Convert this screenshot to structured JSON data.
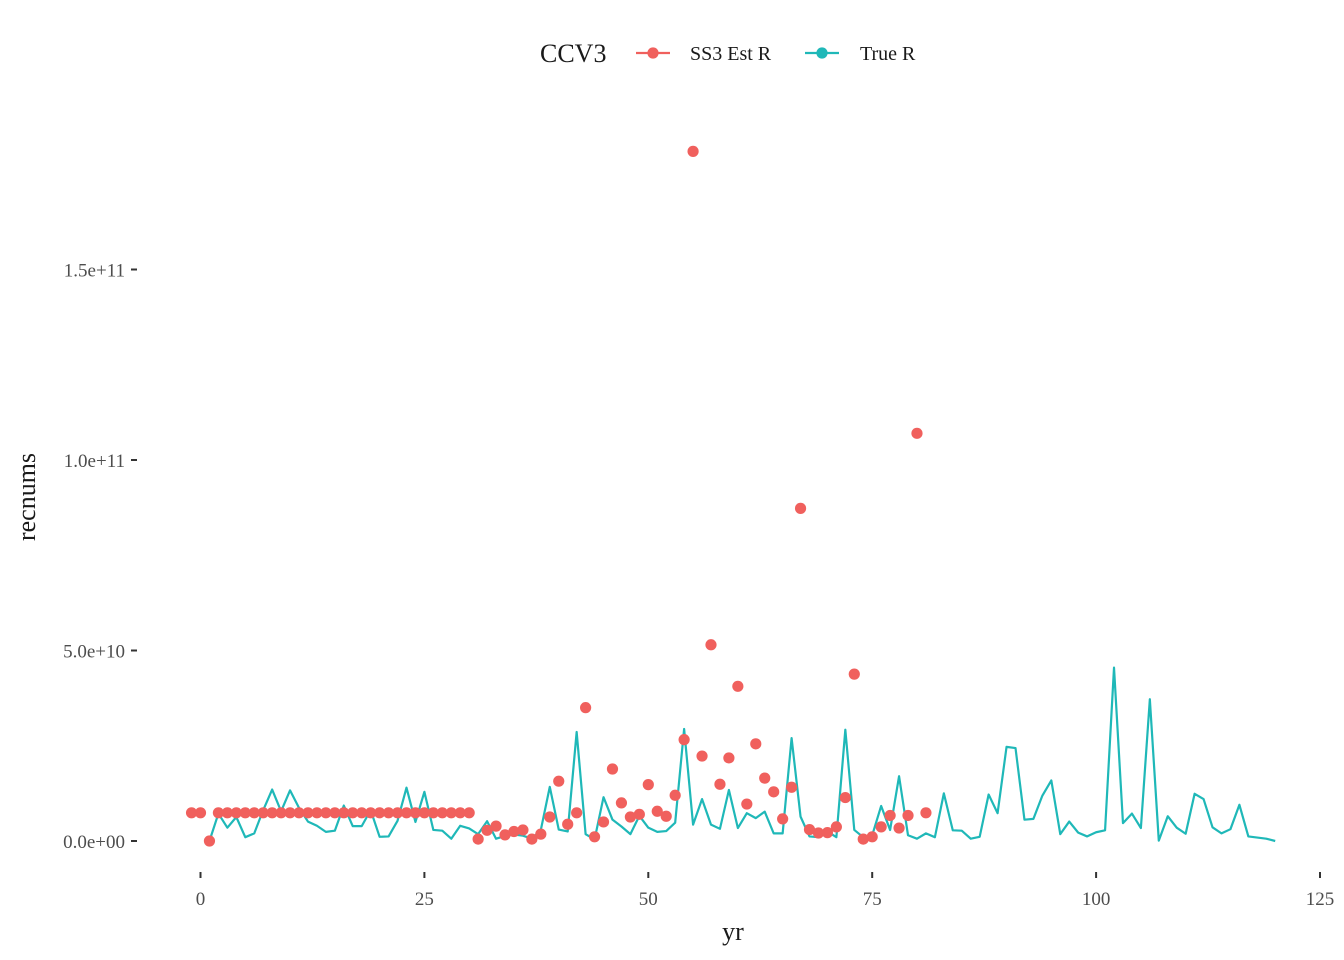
{
  "chart_data": {
    "type": "line",
    "xlabel": "yr",
    "ylabel": "recnums",
    "xlim": [
      -2,
      125
    ],
    "ylim": [
      -7000000000,
      190000000000
    ],
    "xticks": [
      0,
      25,
      50,
      75,
      100,
      125
    ],
    "xtick_labels": [
      "0",
      "25",
      "50",
      "75",
      "100",
      "125"
    ],
    "yticks": [
      0,
      50000000000,
      100000000000,
      150000000000
    ],
    "ytick_labels": [
      "0.0e+00",
      "5.0e+10",
      "1.0e+11",
      "1.5e+11"
    ],
    "grid": false,
    "legend": {
      "title": "CCV3",
      "position": "top",
      "entries": [
        "SS3 Est R",
        "True R"
      ]
    },
    "series": [
      {
        "name": "SS3 Est R",
        "kind": "points",
        "color": "#F0605D",
        "x": [
          -1,
          0,
          1,
          2,
          3,
          4,
          5,
          6,
          7,
          8,
          9,
          10,
          11,
          12,
          13,
          14,
          15,
          16,
          17,
          18,
          19,
          20,
          21,
          22,
          23,
          24,
          25,
          26,
          27,
          28,
          29,
          30,
          31,
          32,
          33,
          34,
          35,
          36,
          37,
          38,
          39,
          40,
          41,
          42,
          43,
          44,
          45,
          46,
          47,
          48,
          49,
          50,
          51,
          52,
          53,
          54,
          55,
          56,
          57,
          58,
          59,
          60,
          61,
          62,
          63,
          64,
          65,
          66,
          67,
          68,
          69,
          70,
          71,
          72,
          73,
          74,
          75,
          76,
          77,
          78,
          79,
          80,
          81
        ],
        "y": [
          7400000000,
          7400000000,
          0,
          7400000000,
          7400000000,
          7400000000,
          7400000000,
          7400000000,
          7400000000,
          7400000000,
          7400000000,
          7400000000,
          7400000000,
          7400000000,
          7400000000,
          7400000000,
          7400000000,
          7400000000,
          7400000000,
          7400000000,
          7400000000,
          7400000000,
          7400000000,
          7400000000,
          7400000000,
          7400000000,
          7400000000,
          7400000000,
          7400000000,
          7400000000,
          7400000000,
          7400000000,
          500000000,
          2800000000,
          3900000000,
          1600000000,
          2500000000,
          2900000000,
          500000000,
          1800000000,
          6300000000,
          15700000000,
          4400000000,
          7400000000,
          35000000000,
          1100000000,
          5000000000,
          18900000000,
          10000000000,
          6300000000,
          7000000000,
          14800000000,
          7800000000,
          6500000000,
          12000000000,
          26600000000,
          181000000000,
          22300000000,
          51500000000,
          14900000000,
          21800000000,
          40600000000,
          9700000000,
          25500000000,
          16500000000,
          12900000000,
          5800000000,
          14100000000,
          87300000000,
          3000000000,
          2100000000,
          2200000000,
          3700000000,
          11400000000,
          43800000000,
          500000000,
          1100000000,
          3700000000,
          6700000000,
          3400000000,
          6700000000,
          107000000000,
          7400000000
        ]
      },
      {
        "name": "True R",
        "kind": "line",
        "color": "#1FB8B8",
        "x": [
          1,
          2,
          3,
          4,
          5,
          6,
          7,
          8,
          9,
          10,
          11,
          12,
          13,
          14,
          15,
          16,
          17,
          18,
          19,
          20,
          21,
          22,
          23,
          24,
          25,
          26,
          27,
          28,
          29,
          30,
          31,
          32,
          33,
          34,
          35,
          36,
          37,
          38,
          39,
          40,
          41,
          42,
          43,
          44,
          45,
          46,
          47,
          48,
          49,
          50,
          51,
          52,
          53,
          54,
          55,
          56,
          57,
          58,
          59,
          60,
          61,
          62,
          63,
          64,
          65,
          66,
          67,
          68,
          69,
          70,
          71,
          72,
          73,
          74,
          75,
          76,
          77,
          78,
          79,
          80,
          81,
          82,
          83,
          84,
          85,
          86,
          87,
          88,
          89,
          90,
          91,
          92,
          93,
          94,
          95,
          96,
          97,
          98,
          99,
          100,
          101,
          102,
          103,
          104,
          105,
          106,
          107,
          108,
          109,
          110,
          111,
          112,
          113,
          114,
          115,
          116,
          117,
          118,
          119,
          120
        ],
        "y": [
          0,
          7200000000,
          3500000000,
          6300000000,
          1000000000,
          2000000000,
          8100000000,
          13500000000,
          7800000000,
          13300000000,
          8700000000,
          5100000000,
          4000000000,
          2400000000,
          2700000000,
          9300000000,
          3900000000,
          3900000000,
          8100000000,
          1100000000,
          1200000000,
          5300000000,
          14000000000,
          5000000000,
          12900000000,
          2900000000,
          2700000000,
          600000000,
          4000000000,
          3300000000,
          1800000000,
          5200000000,
          600000000,
          1300000000,
          1700000000,
          1400000000,
          600000000,
          2900000000,
          14200000000,
          3000000000,
          2500000000,
          28600000000,
          1800000000,
          400000000,
          11500000000,
          5600000000,
          3800000000,
          1800000000,
          6600000000,
          3500000000,
          2400000000,
          2600000000,
          4800000000,
          29400000000,
          4300000000,
          11000000000,
          4300000000,
          3200000000,
          13400000000,
          3400000000,
          7300000000,
          6000000000,
          7700000000,
          2000000000,
          2000000000,
          27000000000,
          6400000000,
          1200000000,
          1000000000,
          2500000000,
          1000000000,
          29200000000,
          2900000000,
          1000000000,
          1500000000,
          9200000000,
          2900000000,
          17000000000,
          1500000000,
          600000000,
          2000000000,
          1000000000,
          12500000000,
          2800000000,
          2700000000,
          600000000,
          1100000000,
          12200000000,
          7300000000,
          24700000000,
          24400000000,
          5600000000,
          5800000000,
          11900000000,
          15900000000,
          1800000000,
          5100000000,
          2200000000,
          1200000000,
          2300000000,
          2800000000,
          45500000000,
          4700000000,
          7200000000,
          3400000000,
          37200000000,
          100000000,
          6500000000,
          3500000000,
          1900000000,
          12400000000,
          11000000000,
          3600000000,
          2000000000,
          3100000000,
          9500000000,
          1200000000,
          900000000,
          600000000,
          0
        ]
      }
    ]
  }
}
